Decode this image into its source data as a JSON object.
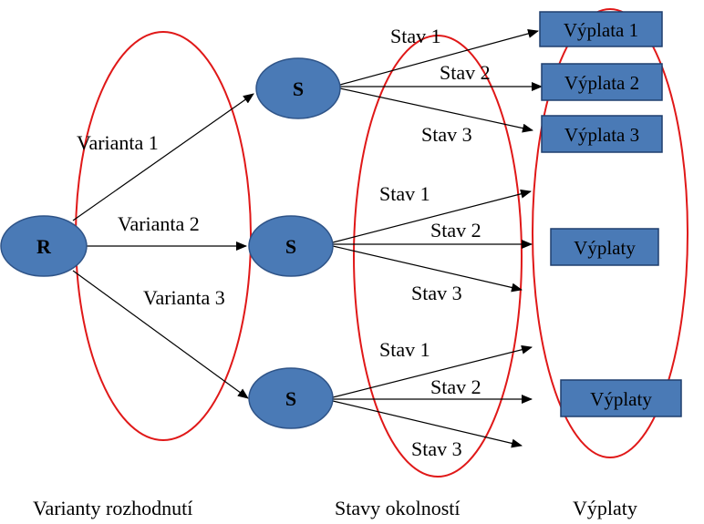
{
  "colors": {
    "node_fill": "#4a7ab6",
    "node_stroke": "#2f5488",
    "group_ellipse": "#e01818",
    "edge": "#000000",
    "box_fill": "#4a7ab6",
    "box_stroke": "#1f3f6e"
  },
  "nodes": {
    "root": "R",
    "state_top": "S",
    "state_middle": "S",
    "state_bottom": "S"
  },
  "edges": {
    "variant_1": "Varianta 1",
    "variant_2": "Varianta 2",
    "variant_3": "Varianta 3",
    "top_state_1": "Stav 1",
    "top_state_2": "Stav 2",
    "top_state_3": "Stav 3",
    "middle_state_1": "Stav 1",
    "middle_state_2": "Stav 2",
    "middle_state_3": "Stav 3",
    "bottom_state_1": "Stav 1",
    "bottom_state_2": "Stav 2",
    "bottom_state_3": "Stav 3"
  },
  "payoffs": {
    "payoff_1": "Výplata 1",
    "payoff_2": "Výplata 2",
    "payoff_3": "Výplata 3",
    "payoffs_middle": "Výplaty",
    "payoffs_bottom": "Výplaty"
  },
  "captions": {
    "decision_variants": "Varianty rozhodnutí",
    "states_of_circumstances": "Stavy okolností",
    "payoffs": "Výplaty"
  }
}
